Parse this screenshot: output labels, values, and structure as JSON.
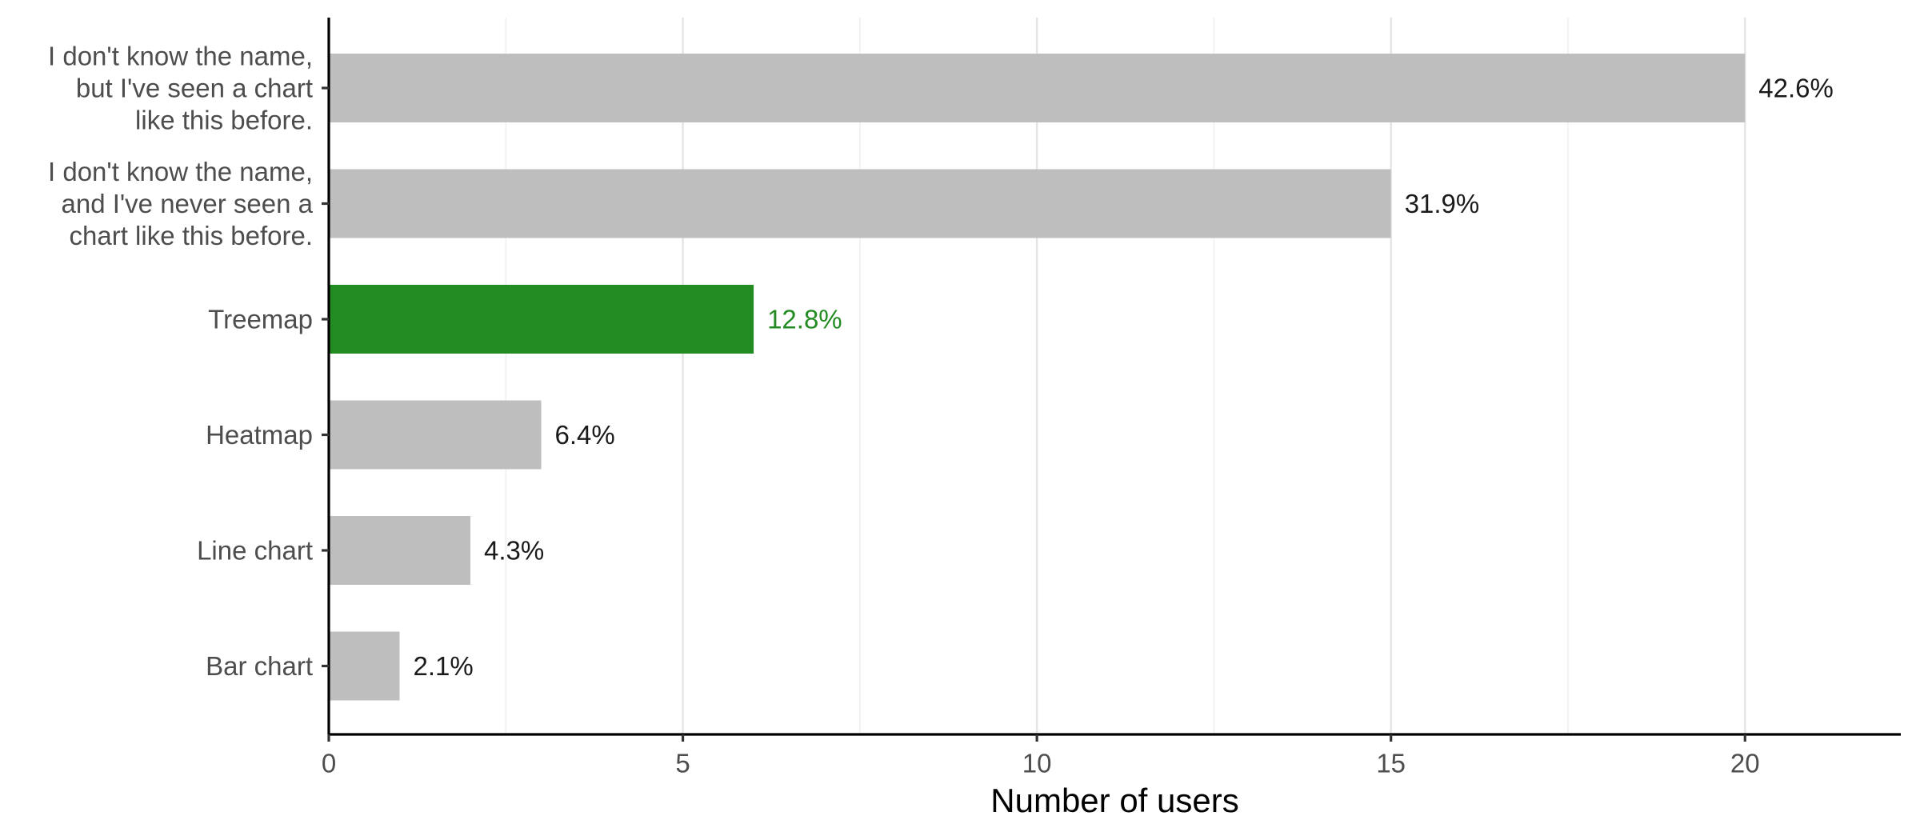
{
  "chart_data": {
    "type": "bar",
    "orientation": "horizontal",
    "categories": [
      [
        "I don't know the name,",
        "but I've seen a chart",
        "like this before."
      ],
      [
        "I don't know the name,",
        "and I've never seen a",
        "chart like this before."
      ],
      [
        "Treemap"
      ],
      [
        "Heatmap"
      ],
      [
        "Line chart"
      ],
      [
        "Bar chart"
      ]
    ],
    "values": [
      20,
      15,
      6,
      3,
      2,
      1
    ],
    "data_labels": [
      "42.6%",
      "31.9%",
      "12.8%",
      "6.4%",
      "4.3%",
      "2.1%"
    ],
    "highlight_index": 2,
    "colors": {
      "bar": "#bebebe",
      "highlight": "#228b22",
      "label": "#1a1a1a"
    },
    "xlabel": "Number of users",
    "ylabel": "",
    "xlim": [
      0,
      22.2
    ],
    "xticks": [
      0,
      5,
      10,
      15,
      20
    ],
    "xtick_labels": [
      "0",
      "5",
      "10",
      "15",
      "20"
    ],
    "grid": true,
    "legend": "none"
  }
}
